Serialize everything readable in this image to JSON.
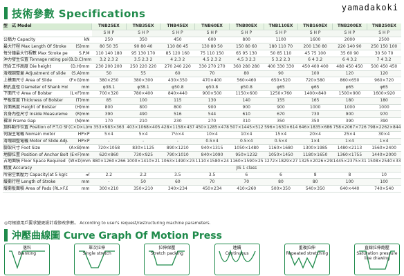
{
  "header": {
    "title": "技術參數 Specifications"
  },
  "brand": "yamadakoki",
  "models": [
    "TNB25EX",
    "TNB35EX",
    "TNB45EX",
    "TNB60EX",
    "TNB80EX",
    "TNB110EX",
    "TNB160EX",
    "TNB200EX",
    "TNB250EX"
  ],
  "model_label": "型　式 Model",
  "shp": [
    "S",
    "H",
    "P"
  ],
  "rows": [
    {
      "label": "公稱力 Capacity",
      "unit": "kN",
      "cells": [
        "250",
        "350",
        "450",
        "600",
        "800",
        "1100",
        "1600",
        "2000",
        "2500"
      ]
    },
    {
      "label": "最大行程 Max Length Of Stroke",
      "unit": "(S)mm",
      "cells": [
        "80 50 35",
        "90 80 40",
        "110 80 45",
        "130 80 50",
        "150 80 60",
        "180 110 70",
        "200 130 80",
        "220 140 90",
        "250 150 100"
      ]
    },
    {
      "label": "每分鐘最大行程數 Max Stroke per minute",
      "unit": "S.P.M",
      "cells": [
        "110 140 180",
        "95 130 170",
        "85 120 160",
        "75 110 150",
        "65 95 130",
        "50 85 110",
        "45 75 100",
        "35 60 90",
        "30 50 70"
      ]
    },
    {
      "label": "沖力發生位置 Tonnage rating point",
      "unit": "(B.D.C)mm",
      "cells": [
        "3.2 2.3 2",
        "3.5 2.3 2",
        "4 2.3 2",
        "4.5 2.3 2",
        "4.5 3 2.3",
        "5 3.2 2.3",
        "6 4 3.2",
        "6 4 3.2",
        "7 4 3.2"
      ]
    },
    {
      "label": "閉合工作高度 Die height",
      "unit": "(D.H)mm",
      "cells": [
        "230 200 200",
        "250 220 220",
        "270 240 220",
        "330 270 270",
        "360 280 280",
        "400 330 330",
        "450 400 400",
        "480 450 450",
        "500 450 450"
      ]
    },
    {
      "label": "滑塊調整量 Adjustment of slide",
      "unit": "(S.A)mm",
      "cells": [
        "50",
        "55",
        "60",
        "70",
        "80",
        "90",
        "100",
        "120",
        "120"
      ]
    },
    {
      "label": "上模面尺寸 Area of Slide",
      "unit": "(F×G)mm",
      "cells": [
        "380×250",
        "380×300",
        "430×350",
        "470×400",
        "560×460",
        "650×520",
        "720×580",
        "860×650",
        "960×720"
      ]
    },
    {
      "label": "柄孔直徑 Diameter of Shank Hole",
      "unit": "mm",
      "cells": [
        "φ38.1",
        "φ38.1",
        "φ50.8",
        "φ50.8",
        "φ50.8",
        "φ65",
        "φ65",
        "φ65",
        "φ65"
      ]
    },
    {
      "label": "下面尺寸 Area of Bolster",
      "unit": "(L×F)mm",
      "cells": [
        "700×320",
        "780×400",
        "840×440",
        "900×500",
        "1150×600",
        "1250×760",
        "1400×840",
        "1500×900",
        "1600×920"
      ]
    },
    {
      "label": "平板厚度 Thickness of Bolster",
      "unit": "(T)mm",
      "cells": [
        "85",
        "100",
        "115",
        "130",
        "140",
        "155",
        "165",
        "180",
        "180"
      ]
    },
    {
      "label": "台面高度 Height of Bolster",
      "unit": "(H)mm",
      "cells": [
        "800",
        "800",
        "800",
        "900",
        "900",
        "900",
        "1000",
        "1000",
        "1000"
      ]
    },
    {
      "label": "台身內徑尺寸 Inside Measurement of Frame",
      "unit": "(R)mm",
      "cells": [
        "390",
        "490",
        "516",
        "544",
        "610",
        "670",
        "730",
        "900",
        "970"
      ]
    },
    {
      "label": "裸深 Frame Gap",
      "unit": "(N)mm",
      "cells": [
        "170",
        "210",
        "230",
        "270",
        "310",
        "350",
        "350",
        "390",
        "390"
      ]
    },
    {
      "label": "頂料動作位置 Position of P.T.O Shaft",
      "unit": "(C×D×L)mm",
      "cells": [
        "353×983×363",
        "403×1068×405",
        "428×1158×437",
        "450×1285×478",
        "507×1445×512",
        "596×1630×614",
        "646×1835×686",
        "758×2067×726",
        "798×2262×844"
      ]
    },
    {
      "label": "伺服主電機 Nomain motor",
      "unit": "HP×P",
      "cells": [
        "5×4",
        "5×4",
        "7½×4",
        "10×4",
        "10×4",
        "15×4",
        "20×4",
        "25×4",
        "30×4"
      ]
    },
    {
      "label": "滑塊調整電機 Motor of Slide Adjustment",
      "unit": "HP×P",
      "cells": [
        "-",
        "-",
        "-",
        "0.5×4",
        "0.5×4",
        "0.5×4",
        "1×4",
        "1×4",
        "1×4"
      ]
    },
    {
      "label": "腳架尺寸 Foot Size",
      "unit": "(A×B)mm",
      "cells": [
        "720×1058",
        "830×1125",
        "890×1210",
        "940×1315",
        "1050×1480",
        "1160×1680",
        "1300×1985",
        "1480×2113",
        "1560×2400"
      ]
    },
    {
      "label": "地腳位置 Position of Anchor Bolts",
      "unit": "(E×F)mm",
      "cells": [
        "620×860",
        "730×925",
        "790×1010",
        "840×1090",
        "950×1232",
        "1050×1450",
        "1180×1650",
        "1360×1755",
        "1440×2000"
      ]
    },
    {
      "label": "占地面積 Floor Space Required",
      "unit": "(W×D)mm",
      "cells": [
        "880×1260×2660",
        "1000×1410×2180",
        "1063×1490×2340",
        "1110×1580×2460",
        "1160×1590×2542",
        "1272×1829×2750",
        "1325×2026×2985",
        "1445×2375×3195",
        "1508×2540×3335"
      ]
    },
    {
      "label": "精度 Accuracy",
      "unit": "",
      "cells": [
        "JIS 1 class"
      ]
    },
    {
      "label": "所需空氣壓力 Capacity(at 5 kg/cm²)",
      "unit": "㎡",
      "cells": [
        "2.2",
        "2.2",
        "3.5",
        "3.5",
        "6",
        "6",
        "8",
        "8",
        "10"
      ]
    },
    {
      "label": "緩衝行程 Length of Stroke",
      "unit": "mm",
      "cells": [
        "-",
        "50",
        "60",
        "70",
        "70",
        "80",
        "80",
        "100",
        "100"
      ]
    },
    {
      "label": "緩衝板面積 Area of Pads (RL×F.B)",
      "unit": "mm",
      "cells": [
        "300×210",
        "350×210",
        "340×234",
        "450×234",
        "410×260",
        "500×350",
        "540×350",
        "640×440",
        "740×540"
      ]
    }
  ],
  "note": "◎可根據用戶要求變更設計或修改參數。 According to user's request/restructuring machine parameters.",
  "curve_header": {
    "title": "沖壓曲線圖 Curve Graph Of Motion Press"
  },
  "curves": [
    {
      "label_cn": "落料",
      "label_en": "Blanking"
    },
    {
      "label_cn": "單次拉伸",
      "label_en": "Single stretch"
    },
    {
      "label_cn": "拉伸保壓",
      "label_en": "Stretch packing"
    },
    {
      "label_cn": "連續",
      "label_en": "Continuous"
    },
    {
      "label_cn": "重複拉伸",
      "label_en": "Repeated stretching"
    },
    {
      "label_cn": "直線拉伸飽壓",
      "label_en": "Saturation pressure line drawing"
    }
  ],
  "colors": {
    "accent": "#1e8a4a",
    "header_fill": "#d8ecd4"
  }
}
